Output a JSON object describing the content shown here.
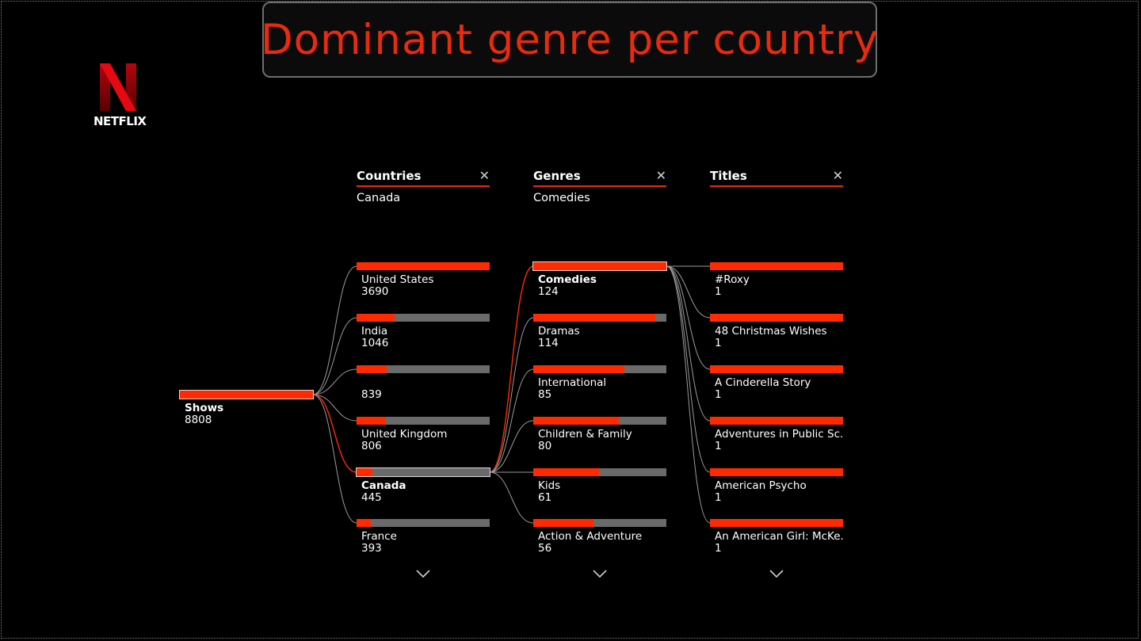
{
  "title": "Dominant genre per country",
  "logo": {
    "word": "NETFLIX",
    "icon": "netflix-n-logo"
  },
  "colors": {
    "accent": "#ff2a00",
    "track": "#6a6a6a",
    "title": "#e62b0f"
  },
  "root": {
    "label": "Shows",
    "value": "8808",
    "fill": 1.0
  },
  "columns": [
    {
      "header": "Countries",
      "filter": "Canada",
      "nodes": [
        {
          "label": "United States",
          "value": "3690",
          "fill": 1.0,
          "selected": false
        },
        {
          "label": "India",
          "value": "1046",
          "fill": 0.283,
          "selected": false
        },
        {
          "label": "",
          "value": "839",
          "fill": 0.227,
          "selected": false
        },
        {
          "label": "United Kingdom",
          "value": "806",
          "fill": 0.218,
          "selected": false
        },
        {
          "label": "Canada",
          "value": "445",
          "fill": 0.121,
          "selected": true
        },
        {
          "label": "France",
          "value": "393",
          "fill": 0.107,
          "selected": false
        }
      ]
    },
    {
      "header": "Genres",
      "filter": "Comedies",
      "nodes": [
        {
          "label": "Comedies",
          "value": "124",
          "fill": 1.0,
          "selected": true
        },
        {
          "label": "Dramas",
          "value": "114",
          "fill": 0.919,
          "selected": false
        },
        {
          "label": "International",
          "value": "85",
          "fill": 0.685,
          "selected": false
        },
        {
          "label": "Children & Family",
          "value": "80",
          "fill": 0.645,
          "selected": false
        },
        {
          "label": "Kids",
          "value": "61",
          "fill": 0.492,
          "selected": false
        },
        {
          "label": "Action & Adventure",
          "value": "56",
          "fill": 0.452,
          "selected": false
        }
      ]
    },
    {
      "header": "Titles",
      "filter": "",
      "nodes": [
        {
          "label": "#Roxy",
          "value": "1",
          "fill": 1.0,
          "selected": false
        },
        {
          "label": "48 Christmas Wishes",
          "value": "1",
          "fill": 1.0,
          "selected": false
        },
        {
          "label": "A Cinderella Story",
          "value": "1",
          "fill": 1.0,
          "selected": false
        },
        {
          "label": "Adventures in Public Sc...",
          "value": "1",
          "fill": 1.0,
          "selected": false
        },
        {
          "label": "American Psycho",
          "value": "1",
          "fill": 1.0,
          "selected": false
        },
        {
          "label": "An American Girl: McKe...",
          "value": "1",
          "fill": 1.0,
          "selected": false
        }
      ]
    }
  ]
}
